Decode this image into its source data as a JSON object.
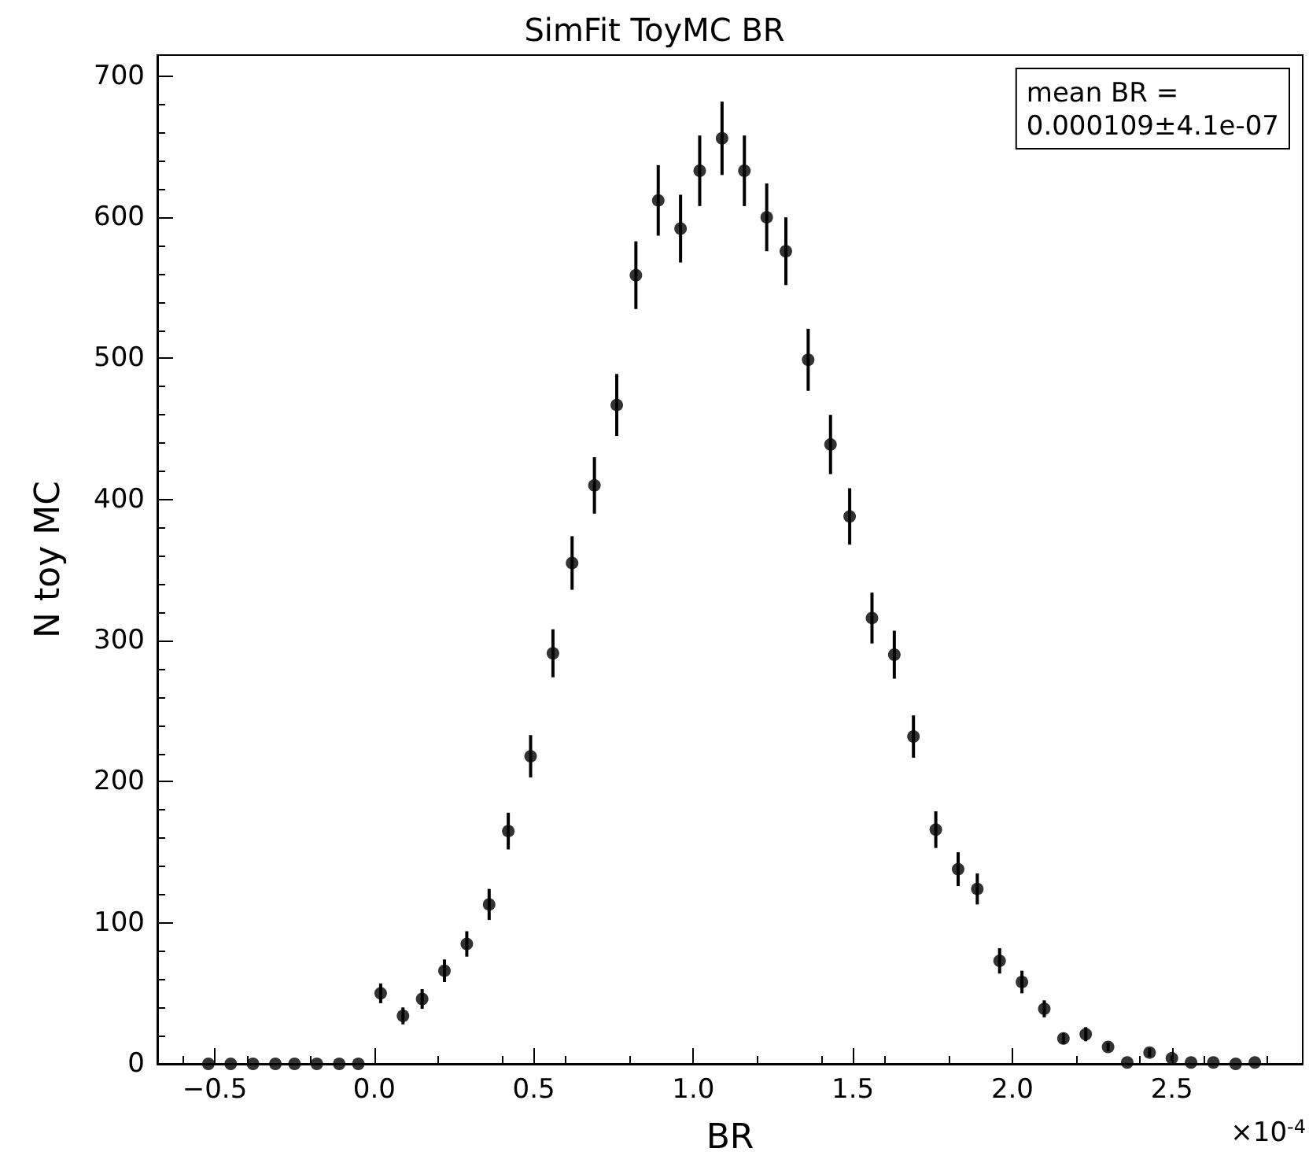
{
  "chart_data": {
    "type": "scatter",
    "title": "SimFit ToyMC BR",
    "xlabel": "BR",
    "ylabel": "N toy MC",
    "annotations": [
      "mean BR =\n0.000109±4.1e-07",
      "×10$^{-4}$"
    ],
    "x": [
      -0.52,
      -0.45,
      -0.38,
      -0.31,
      -0.25,
      -0.18,
      -0.11,
      -0.05,
      0.02,
      0.09,
      0.15,
      0.22,
      0.29,
      0.36,
      0.42,
      0.49,
      0.56,
      0.62,
      0.69,
      0.76,
      0.82,
      0.89,
      0.96,
      1.02,
      1.09,
      1.16,
      1.23,
      1.29,
      1.36,
      1.43,
      1.49,
      1.56,
      1.63,
      1.69,
      1.76,
      1.83,
      1.89,
      1.96,
      2.03,
      2.1,
      2.16,
      2.23,
      2.3,
      2.36,
      2.43,
      2.5,
      2.56,
      2.63,
      2.7,
      2.76
    ],
    "values": [
      0,
      0,
      0,
      0,
      0,
      0,
      0,
      0,
      50,
      34,
      46,
      66,
      85,
      113,
      165,
      218,
      291,
      355,
      410,
      467,
      559,
      612,
      592,
      633,
      656,
      633,
      600,
      576,
      499,
      439,
      388,
      316,
      290,
      232,
      166,
      138,
      124,
      73,
      58,
      39,
      18,
      21,
      12,
      1,
      8,
      4,
      1,
      1,
      0,
      1
    ],
    "errors": [
      null,
      null,
      null,
      null,
      null,
      null,
      null,
      null,
      7,
      6,
      7,
      8,
      9,
      11,
      13,
      15,
      17,
      19,
      20,
      22,
      24,
      25,
      24,
      25,
      26,
      25,
      24,
      24,
      22,
      21,
      20,
      18,
      17,
      15,
      13,
      12,
      11,
      9,
      8,
      6,
      4,
      5,
      3,
      null,
      3,
      2,
      null,
      null,
      null,
      null
    ],
    "color": "#000000",
    "marker": "circle",
    "xlim": [
      -0.68,
      2.91
    ],
    "xticks": [
      -0.5,
      {
        "value": 0,
        "label": "0.0"
      },
      0.5,
      {
        "value": 1,
        "label": "1.0"
      },
      1.5,
      {
        "value": 2,
        "label": "2.0"
      },
      2.5
    ],
    "ylim": [
      0,
      715
    ],
    "yticks": [
      0,
      100,
      200,
      300,
      400,
      500,
      600,
      700
    ],
    "grid": false
  }
}
